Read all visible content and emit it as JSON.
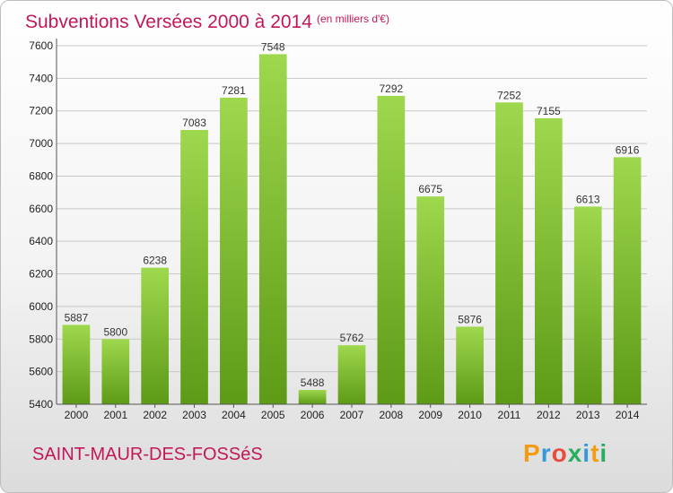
{
  "chart_data": {
    "type": "bar",
    "title": "Subventions Versées 2000 à 2014",
    "subtitle": "(en milliers d'€)",
    "categories": [
      "2000",
      "2001",
      "2002",
      "2003",
      "2004",
      "2005",
      "2006",
      "2007",
      "2008",
      "2009",
      "2010",
      "2011",
      "2012",
      "2013",
      "2014"
    ],
    "values": [
      5887,
      5800,
      6238,
      7083,
      7281,
      7548,
      5488,
      5762,
      7292,
      6675,
      5876,
      7252,
      7155,
      6613,
      6916
    ],
    "ylim": [
      5400,
      7600
    ],
    "yticks": [
      5400,
      5600,
      5800,
      6000,
      6200,
      6400,
      6600,
      6800,
      7000,
      7200,
      7400,
      7600
    ],
    "grid": true,
    "colors": {
      "bar_light": "#9ed84e",
      "bar_dark": "#5d9a16",
      "title": "#c2185b"
    }
  },
  "footer": {
    "place_name": "SAINT-MAUR-DES-FOSSéS",
    "logo_text": "Proxiti",
    "logo_colors": [
      "#f39c12",
      "#3498db",
      "#e74c3c",
      "#27ae60",
      "#3498db",
      "#f39c12",
      "#27ae60"
    ]
  }
}
